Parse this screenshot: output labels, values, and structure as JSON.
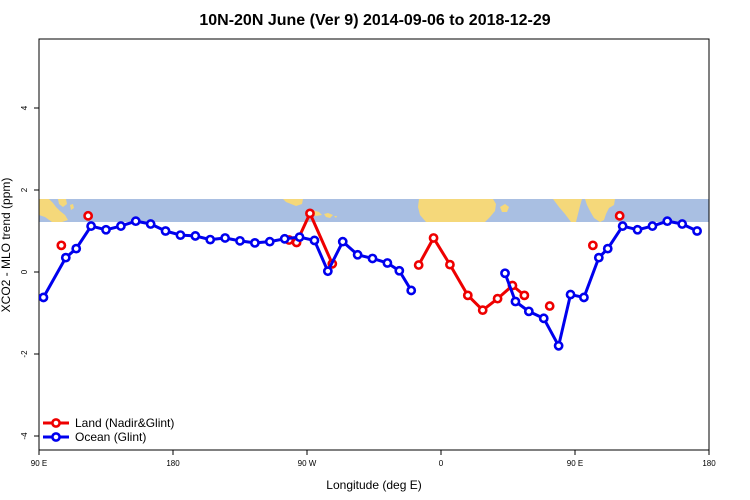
{
  "chart_data": {
    "type": "line",
    "title": "10N-20N June (Ver 9)   2014-09-06 to 2018-12-29",
    "xlabel": "Longitude (deg E)",
    "ylabel": "XCO2 - MLO trend (ppm)",
    "xlim": [
      90,
      540
    ],
    "ylim": [
      -4,
      5.5
    ],
    "xticks": [
      {
        "value": 90,
        "label": "90 E"
      },
      {
        "value": 180,
        "label": "180"
      },
      {
        "value": 270,
        "label": "90 W"
      },
      {
        "value": 360,
        "label": "0"
      },
      {
        "value": 450,
        "label": "90 E"
      },
      {
        "value": 540,
        "label": "180"
      }
    ],
    "yticks": [
      {
        "value": -4,
        "label": "-4"
      },
      {
        "value": -2,
        "label": "-2"
      },
      {
        "value": 0,
        "label": "0"
      },
      {
        "value": 2,
        "label": "2"
      },
      {
        "value": 4,
        "label": "4"
      }
    ],
    "grid": false,
    "legend_position": "bottom-left",
    "inset": "land/ocean map strip (latitude band 10N-20N)",
    "series": [
      {
        "name": "Land (Nadir&Glint)",
        "color": "#ee0000",
        "segments": [
          [
            [
              105,
              0.65
            ]
          ],
          [
            [
              123,
              1.37
            ]
          ],
          [
            [
              258,
              0.78
            ],
            [
              263,
              0.72
            ],
            [
              272,
              1.43
            ],
            [
              287,
              0.2
            ]
          ],
          [
            [
              345,
              0.17
            ],
            [
              355,
              0.83
            ],
            [
              366,
              0.18
            ],
            [
              378,
              -0.57
            ],
            [
              388,
              -0.93
            ],
            [
              398,
              -0.65
            ],
            [
              408,
              -0.33
            ],
            [
              416,
              -0.57
            ]
          ],
          [
            [
              433,
              -0.83
            ]
          ],
          [
            [
              462,
              0.65
            ]
          ],
          [
            [
              480,
              1.37
            ]
          ]
        ]
      },
      {
        "name": "Ocean (Glint)",
        "color": "#0000ee",
        "segments": [
          [
            [
              93,
              -0.62
            ],
            [
              108,
              0.35
            ],
            [
              115,
              0.57
            ],
            [
              125,
              1.12
            ],
            [
              135,
              1.03
            ],
            [
              145,
              1.12
            ],
            [
              155,
              1.24
            ],
            [
              165,
              1.17
            ],
            [
              175,
              1.0
            ],
            [
              185,
              0.9
            ],
            [
              195,
              0.88
            ],
            [
              205,
              0.79
            ],
            [
              215,
              0.83
            ],
            [
              225,
              0.76
            ],
            [
              235,
              0.71
            ],
            [
              245,
              0.74
            ],
            [
              255,
              0.81
            ],
            [
              265,
              0.85
            ],
            [
              275,
              0.77
            ],
            [
              284,
              0.02
            ],
            [
              294,
              0.74
            ],
            [
              304,
              0.42
            ],
            [
              314,
              0.33
            ],
            [
              324,
              0.22
            ],
            [
              332,
              0.03
            ],
            [
              340,
              -0.45
            ]
          ],
          [
            [
              403,
              -0.03
            ],
            [
              410,
              -0.72
            ],
            [
              419,
              -0.96
            ],
            [
              429,
              -1.13
            ],
            [
              439,
              -1.8
            ],
            [
              447,
              -0.55
            ],
            [
              456,
              -0.62
            ],
            [
              466,
              0.35
            ],
            [
              472,
              0.57
            ],
            [
              482,
              1.12
            ],
            [
              492,
              1.03
            ],
            [
              502,
              1.12
            ],
            [
              512,
              1.24
            ],
            [
              522,
              1.17
            ],
            [
              532,
              1.0
            ]
          ]
        ]
      }
    ]
  }
}
